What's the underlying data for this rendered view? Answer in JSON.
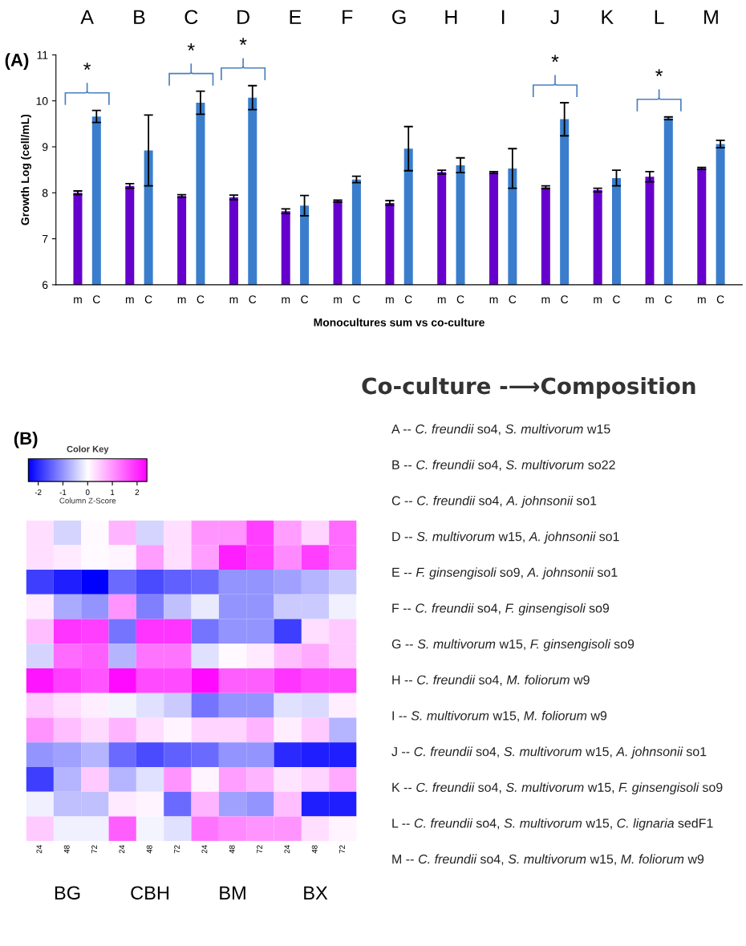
{
  "chart_data": [
    {
      "type": "bar",
      "xlabel": "Monocultures sum vs co-culture",
      "ylabel": "Growth Log (cell/mL)",
      "categories": [
        "A",
        "B",
        "C",
        "D",
        "E",
        "F",
        "G",
        "H",
        "I",
        "J",
        "K",
        "L",
        "M"
      ],
      "series": [
        {
          "name": "m",
          "color": "#6600cc",
          "values": [
            8.0,
            8.15,
            7.93,
            7.9,
            7.6,
            7.82,
            7.78,
            8.45,
            8.44,
            8.12,
            8.06,
            8.35,
            8.53
          ],
          "errors": [
            0.04,
            0.05,
            0.03,
            0.05,
            0.05,
            0.02,
            0.05,
            0.04,
            0.02,
            0.03,
            0.04,
            0.11,
            0.02
          ]
        },
        {
          "name": "C",
          "color": "#3a7dcc",
          "values": [
            9.66,
            8.92,
            9.96,
            10.07,
            7.72,
            8.29,
            8.96,
            8.6,
            8.53,
            9.6,
            8.32,
            9.62,
            9.06
          ],
          "errors": [
            0.13,
            0.77,
            0.25,
            0.26,
            0.22,
            0.07,
            0.48,
            0.16,
            0.43,
            0.36,
            0.17,
            0.03,
            0.08
          ]
        }
      ],
      "ylim": [
        6,
        11
      ],
      "yticks": [
        6,
        7,
        8,
        9,
        10,
        11
      ],
      "annotations": [
        "(A)",
        "*",
        "*",
        "*",
        "*",
        "*"
      ]
    },
    {
      "type": "heatmap",
      "legend_title": "Color Key",
      "clabel": "Column Z-Score",
      "categories": [
        "24",
        "48",
        "72",
        "24",
        "48",
        "72",
        "24",
        "48",
        "72",
        "24",
        "48",
        "72"
      ],
      "y_categories": [
        null,
        null,
        null,
        null,
        null,
        null,
        null,
        null,
        null,
        null,
        null,
        null,
        null
      ],
      "cells": [
        [
          0.3,
          -0.4,
          0.05,
          0.7,
          -0.4,
          0.3,
          1.0,
          1.0,
          1.8,
          0.9,
          0.4,
          1.4
        ],
        [
          0.3,
          0.2,
          0.05,
          0.1,
          0.9,
          0.3,
          0.9,
          2.1,
          1.8,
          1.1,
          1.8,
          1.4
        ],
        [
          -1.8,
          -2.1,
          -2.4,
          -1.4,
          -1.7,
          -1.5,
          -1.4,
          -1.0,
          -1.0,
          -0.9,
          -0.7,
          -0.5
        ],
        [
          0.2,
          -0.8,
          -1.0,
          1.0,
          -1.2,
          -0.6,
          -0.2,
          -1.0,
          -1.0,
          -0.5,
          -0.5,
          -0.15
        ],
        [
          0.6,
          1.9,
          1.8,
          -1.3,
          1.9,
          1.9,
          -1.3,
          -1.0,
          -1.0,
          -1.8,
          0.3,
          0.5
        ],
        [
          -0.4,
          1.4,
          1.5,
          -0.7,
          1.3,
          1.3,
          -0.3,
          0.05,
          0.2,
          0.6,
          0.8,
          0.5
        ],
        [
          2.2,
          1.8,
          1.6,
          2.3,
          1.7,
          1.7,
          2.3,
          1.5,
          1.5,
          1.9,
          1.7,
          1.7
        ],
        [
          0.5,
          0.3,
          0.15,
          -0.1,
          -0.3,
          -0.5,
          -1.3,
          -1.0,
          -1.0,
          -0.3,
          -0.35,
          0.15
        ],
        [
          1.0,
          0.6,
          0.35,
          0.7,
          0.3,
          0.1,
          0.4,
          0.4,
          0.7,
          0.15,
          0.5,
          -0.7
        ],
        [
          -1.0,
          -0.9,
          -0.7,
          -1.4,
          -1.7,
          -1.5,
          -1.4,
          -1.0,
          -1.0,
          -2.0,
          -2.1,
          -2.1
        ],
        [
          -1.8,
          -0.7,
          0.5,
          -0.7,
          -0.3,
          1.0,
          0.1,
          0.9,
          0.7,
          0.25,
          0.4,
          0.8
        ],
        [
          -0.15,
          -0.6,
          -0.6,
          0.2,
          0.1,
          -1.4,
          0.7,
          -0.9,
          -1.0,
          0.6,
          -2.1,
          -2.1
        ],
        [
          0.5,
          -0.15,
          -0.15,
          1.5,
          -0.1,
          -0.3,
          1.3,
          1.1,
          1.0,
          1.0,
          0.3,
          0.1
        ]
      ],
      "clim": [
        -2.4,
        2.4
      ],
      "cticks": [
        -2,
        -1,
        0,
        1,
        2
      ],
      "annotations": [
        "(B)",
        "BG",
        "CBH",
        "BM",
        "BX"
      ]
    },
    {
      "type": "other",
      "title": "Co-culture -⟶Composition",
      "annotations": [
        "A -- C. freundii so4, S. multivorum w15",
        "B -- C. freundii so4, S. multivorum so22",
        "C -- C. freundii so4, A. johnsonii so1",
        "D -- S. multivorum w15, A. johnsonii so1",
        "E -- F. ginsengisoli so9, A. johnsonii so1",
        "F -- C. freundii so4, F. ginsengisoli so9",
        "G -- S. multivorum w15, F. ginsengisoli so9",
        "H -- C. freundii so4, M. foliorum w9",
        "I -- S. multivorum w15, M. foliorum w9",
        "J -- C. freundii so4, S. multivorum w15, A. johnsonii so1",
        "K -- C. freundii so4, S. multivorum w15, F. ginsengisoli so9",
        "L -- C. freundii so4, S. multivorum w15, C. lignaria sedF1",
        "M -- C. freundii so4, S. multivorum w15, M. foliorum w9"
      ]
    }
  ]
}
